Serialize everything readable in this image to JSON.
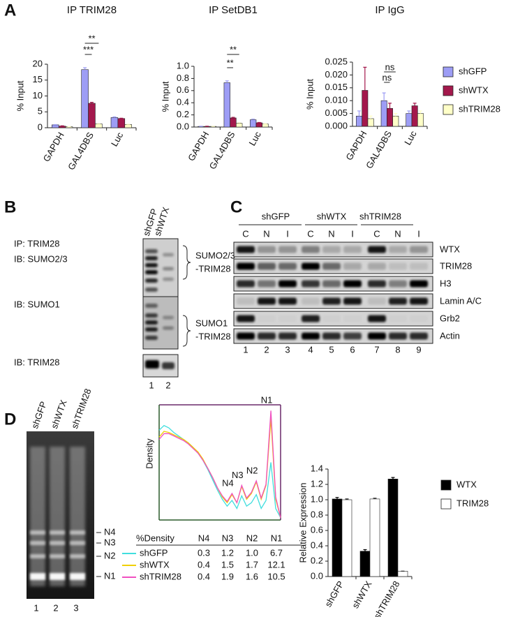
{
  "panel_letters": [
    "A",
    "B",
    "C",
    "D"
  ],
  "chart_data": [
    {
      "type": "bar",
      "title": "IP TRIM28",
      "y_label": "% Input",
      "categories": [
        "GAPDH",
        "GAL4DBS",
        "Luc"
      ],
      "series": [
        {
          "name": "shGFP",
          "color": "#9d9df5",
          "values": [
            0.9,
            18.3,
            3.2
          ],
          "errors": [
            0.1,
            0.6,
            0.2
          ]
        },
        {
          "name": "shWTX",
          "color": "#a3184c",
          "values": [
            0.5,
            7.7,
            2.9
          ],
          "errors": [
            0.1,
            0.3,
            0.1
          ]
        },
        {
          "name": "shTRIM28",
          "color": "#ffffc8",
          "values": [
            0.3,
            1.2,
            1.0
          ],
          "errors": [
            0.05,
            0.1,
            0.1
          ]
        }
      ],
      "ylim": [
        0,
        20
      ],
      "yticks": [
        0,
        5,
        10,
        15,
        20
      ],
      "annotations": [
        "**",
        "***"
      ]
    },
    {
      "type": "bar",
      "title": "IP SetDB1",
      "y_label": "% Input",
      "categories": [
        "GAPDH",
        "GAL4DBS",
        "Luc"
      ],
      "series": [
        {
          "name": "shGFP",
          "color": "#9d9df5",
          "values": [
            0.01,
            0.73,
            0.12
          ],
          "errors": [
            0.003,
            0.03,
            0.01
          ]
        },
        {
          "name": "shWTX",
          "color": "#a3184c",
          "values": [
            0.01,
            0.15,
            0.07
          ],
          "errors": [
            0.003,
            0.01,
            0.005
          ]
        },
        {
          "name": "shTRIM28",
          "color": "#ffffc8",
          "values": [
            0.01,
            0.06,
            0.05
          ],
          "errors": [
            0.003,
            0.01,
            0.005
          ]
        }
      ],
      "ylim": [
        0,
        1.0
      ],
      "yticks": [
        {
          "value": 0,
          "label": "0.0"
        },
        0.2,
        0.4,
        0.6,
        0.8,
        {
          "value": 1.0,
          "label": "1.0"
        }
      ],
      "annotations": [
        "**",
        "**"
      ]
    },
    {
      "type": "bar",
      "title": "IP IgG",
      "y_label": "% Input",
      "categories": [
        "GAPDH",
        "GAL4DBS",
        "Luc"
      ],
      "series": [
        {
          "name": "shGFP",
          "color": "#9d9df5",
          "values": [
            0.004,
            0.01,
            0.005
          ],
          "errors": [
            0.002,
            0.003,
            0.001
          ]
        },
        {
          "name": "shWTX",
          "color": "#a3184c",
          "values": [
            0.014,
            0.007,
            0.008
          ],
          "errors": [
            0.009,
            0.002,
            0.001
          ]
        },
        {
          "name": "shTRIM28",
          "color": "#ffffc8",
          "values": [
            0.003,
            0.004,
            0.005
          ],
          "errors": [
            0.001,
            0.001,
            0.001
          ]
        }
      ],
      "ylim": [
        0,
        0.025
      ],
      "yticks": [
        {
          "value": 0,
          "label": "0.000"
        },
        0.005,
        {
          "value": 0.01,
          "label": "0.010"
        },
        0.015,
        {
          "value": 0.02,
          "label": "0.020"
        },
        0.025
      ],
      "annotations": [
        "ns",
        "ns"
      ],
      "legend": "right"
    },
    {
      "type": "line",
      "y_label": "Density",
      "categories": [
        null,
        null,
        null,
        null,
        null,
        null,
        null,
        null,
        null,
        null,
        null,
        null,
        null,
        null,
        null,
        null,
        null,
        null,
        null,
        null,
        null,
        null,
        null,
        null,
        null,
        null
      ],
      "series": [
        {
          "name": "shGFP",
          "color": "#40dede",
          "values": [
            0.78,
            0.82,
            0.8,
            0.76,
            0.73,
            0.7,
            0.67,
            0.63,
            0.58,
            0.52,
            0.44,
            0.35,
            0.26,
            0.18,
            0.12,
            0.17,
            0.1,
            0.21,
            0.12,
            0.15,
            0.22,
            0.1,
            0.17,
            0.5,
            0.1,
            0.02
          ]
        },
        {
          "name": "shWTX",
          "color": "#f0d000",
          "values": [
            0.72,
            0.77,
            0.76,
            0.74,
            0.72,
            0.7,
            0.67,
            0.63,
            0.59,
            0.53,
            0.45,
            0.37,
            0.28,
            0.2,
            0.15,
            0.22,
            0.15,
            0.29,
            0.18,
            0.23,
            0.33,
            0.18,
            0.3,
            0.88,
            0.18,
            0.02
          ]
        },
        {
          "name": "shTRIM28",
          "color": "#f050c0",
          "values": [
            0.7,
            0.75,
            0.75,
            0.73,
            0.71,
            0.69,
            0.66,
            0.62,
            0.58,
            0.52,
            0.45,
            0.37,
            0.28,
            0.21,
            0.16,
            0.23,
            0.15,
            0.3,
            0.19,
            0.24,
            0.34,
            0.19,
            0.31,
            0.95,
            0.2,
            0.02
          ]
        }
      ],
      "ylim": [
        0,
        1
      ],
      "annotations": [
        "N4",
        "N3",
        "N2",
        "N1"
      ]
    },
    {
      "type": "bar",
      "y_label": "Relative Expression",
      "categories": [
        "shGFP",
        "shWTX",
        "shTRIM28"
      ],
      "series": [
        {
          "name": "WTX",
          "color": "#000000",
          "values": [
            1.01,
            0.33,
            1.27
          ],
          "errors": [
            0.02,
            0.02,
            0.02
          ]
        },
        {
          "name": "TRIM28",
          "color": "#ffffff",
          "values": [
            1.0,
            1.01,
            0.07
          ],
          "errors": [
            0.01,
            0.01,
            0.0
          ]
        }
      ],
      "ylim": [
        0,
        1.4
      ],
      "yticks": [
        {
          "value": 0,
          "label": "0.0"
        },
        0.2,
        0.4,
        0.6,
        0.8,
        {
          "value": 1.0,
          "label": "1.0"
        },
        1.2,
        1.4
      ],
      "legend": "right"
    }
  ],
  "panel_b": {
    "columns": [
      "shGFP",
      "shWTX"
    ],
    "ip": "IP: TRIM28",
    "blots": [
      "IB: SUMO2/3",
      "IB: SUMO1",
      "IB: TRIM28"
    ],
    "brackets": [
      [
        "SUMO2/3",
        "-TRIM28"
      ],
      [
        "SUMO1",
        "-TRIM28"
      ]
    ],
    "lanes": [
      "1",
      "2"
    ]
  },
  "panel_c": {
    "groups": [
      "shGFP",
      "shWTX",
      "shTRIM28"
    ],
    "fractions": [
      "C",
      "N",
      "I",
      "C",
      "N",
      "I",
      "C",
      "N",
      "I"
    ],
    "proteins": [
      "WTX",
      "TRIM28",
      "H3",
      "Lamin A/C",
      "Grb2",
      "Actin"
    ],
    "lanes": [
      "1",
      "2",
      "3",
      "4",
      "5",
      "6",
      "7",
      "8",
      "9"
    ]
  },
  "panel_d_gel": {
    "columns": [
      "shGFP",
      "shWTX",
      "shTRIM28"
    ],
    "bands": [
      "N4",
      "N3",
      "N2",
      "N1"
    ],
    "lanes": [
      "1",
      "2",
      "3"
    ]
  },
  "density_table": {
    "header": [
      "%Density",
      "N4",
      "N3",
      "N2",
      "N1"
    ],
    "rows": [
      [
        "0.3",
        "1.2",
        "1.0",
        "6.7"
      ],
      [
        "0.4",
        "1.5",
        "1.7",
        "12.1"
      ],
      [
        "0.4",
        "1.9",
        "1.6",
        "10.5"
      ]
    ]
  }
}
